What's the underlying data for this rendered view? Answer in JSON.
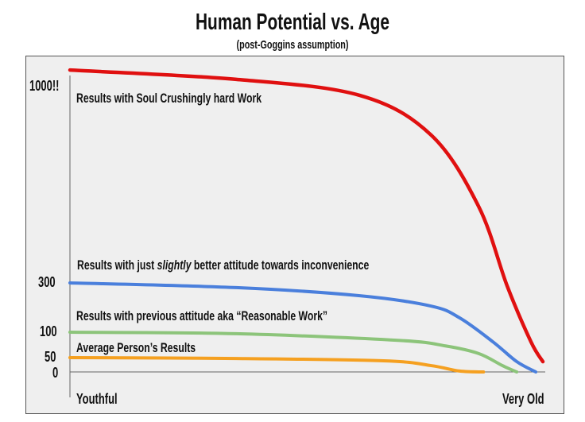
{
  "chart_data": {
    "type": "line",
    "title": "Human Potential vs. Age",
    "subtitle": "(post-Goggins assumption)",
    "xlabel": "",
    "ylabel": "",
    "x_tick_labels": [
      "Youthful",
      "Very Old"
    ],
    "y_ticks": [
      {
        "value": 0,
        "label": "0"
      },
      {
        "value": 50,
        "label": "50"
      },
      {
        "value": 100,
        "label": "100"
      },
      {
        "value": 300,
        "label": "300"
      },
      {
        "value": 1000,
        "label": "1000!!"
      }
    ],
    "y_scale": "non-linear (compressed)",
    "grid": false,
    "series": [
      {
        "label_pre": "Results with Soul Crushingly hard Work",
        "label_em": "",
        "label_post": "",
        "color": "#e01010",
        "x": [
          0,
          35,
          61,
          76,
          86,
          92,
          97,
          99.5
        ],
        "y": [
          1056,
          1023,
          966,
          825,
          571,
          287,
          81,
          36
        ]
      },
      {
        "label_pre": "Results with just ",
        "label_em": "slightly",
        "label_post": " better attitude towards inconvenience",
        "color": "#4a7fdc",
        "x": [
          0,
          35,
          61,
          76,
          82,
          89,
          94,
          98
        ],
        "y": [
          300,
          281,
          248,
          206,
          158,
          81,
          36,
          0
        ]
      },
      {
        "label_pre": "Results with previous attitude aka “Reasonable Work”",
        "label_em": "",
        "label_post": "",
        "color": "#8cc47a",
        "x": [
          0,
          35,
          69,
          79,
          86,
          91,
          94
        ],
        "y": [
          100,
          97,
          84,
          73,
          58,
          22,
          0
        ]
      },
      {
        "label_pre": "Average Person’s Results",
        "label_em": "",
        "label_post": "",
        "color": "#f5a020",
        "x": [
          0,
          35,
          66,
          76,
          82,
          87
        ],
        "y": [
          50,
          47,
          39,
          22,
          3,
          0
        ]
      }
    ]
  }
}
